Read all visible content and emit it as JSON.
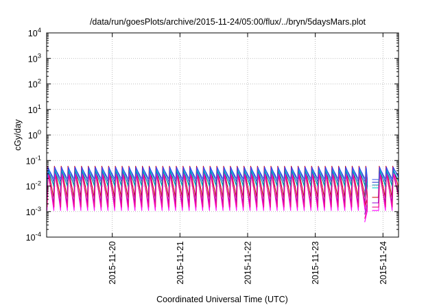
{
  "chart_data": {
    "type": "line",
    "title": "/data/run/goesPlots/archive/2015-11-24/05:00/flux/../bryn/5daysMars.plot",
    "xlabel": "Coordinated Universal Time (UTC)",
    "ylabel": "cGy/day",
    "yscale": "log",
    "ylim": [
      0.0001,
      10000
    ],
    "y_ticks": [
      {
        "value": 0.0001,
        "label": "10",
        "exp": "-4"
      },
      {
        "value": 0.001,
        "label": "10",
        "exp": "-3"
      },
      {
        "value": 0.01,
        "label": "10",
        "exp": "-2"
      },
      {
        "value": 0.1,
        "label": "10",
        "exp": "-1"
      },
      {
        "value": 1,
        "label": "10",
        "exp": "0"
      },
      {
        "value": 10,
        "label": "10",
        "exp": "1"
      },
      {
        "value": 100,
        "label": "10",
        "exp": "2"
      },
      {
        "value": 1000,
        "label": "10",
        "exp": "3"
      },
      {
        "value": 10000,
        "label": "10",
        "exp": "4"
      }
    ],
    "x_range_days": [
      -0.97,
      4.23
    ],
    "x_ticks": [
      {
        "day": 0,
        "label": "2015-11-20"
      },
      {
        "day": 1,
        "label": "2015-11-21"
      },
      {
        "day": 2,
        "label": "2015-11-22"
      },
      {
        "day": 3,
        "label": "2015-11-23"
      },
      {
        "day": 4,
        "label": "2015-11-24"
      }
    ],
    "grid": true,
    "pattern": {
      "period_days": 0.1,
      "first_peak_day": -0.955,
      "data_gap_days": [
        3.77,
        3.84
      ],
      "dip_day": 3.73
    },
    "series": [
      {
        "color": "#cc0000",
        "peak": 0.06,
        "trough": 0.0036
      },
      {
        "color": "#ff00ff",
        "peak": 0.055,
        "trough": 0.0011
      },
      {
        "color": "#2a3bd1",
        "peak": 0.055,
        "trough": 0.014
      },
      {
        "color": "#00cccc",
        "peak": 0.045,
        "trough": 0.0085
      },
      {
        "color": "#9400d3",
        "peak": 0.035,
        "trough": 0.0022
      },
      {
        "color": "#0088aa",
        "peak": 0.04,
        "trough": 0.011
      },
      {
        "color": "#ee1188",
        "peak": 0.03,
        "trough": 0.0015
      },
      {
        "color": "#3355ee",
        "peak": 0.05,
        "trough": 0.018
      }
    ]
  }
}
